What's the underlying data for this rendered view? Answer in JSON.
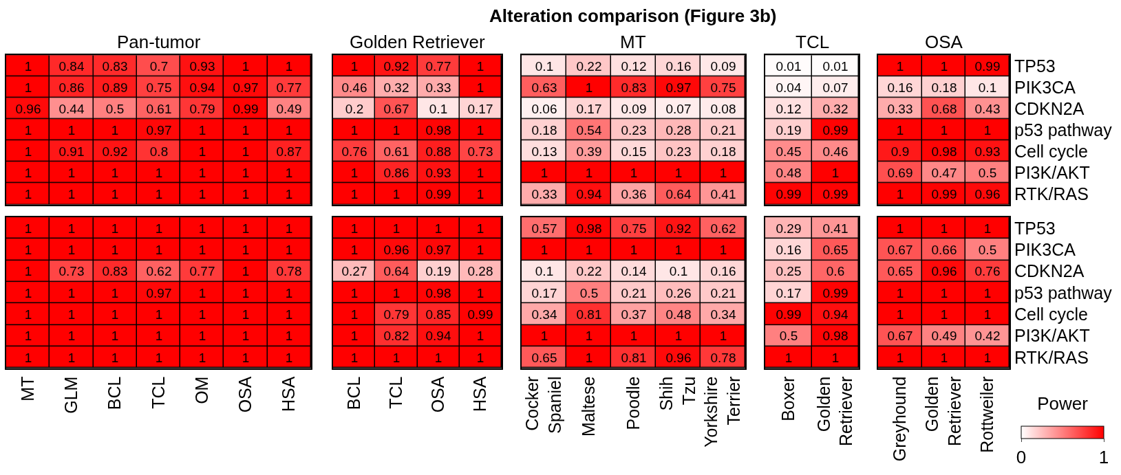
{
  "chart_data": [
    {
      "type": "heatmap",
      "title": "Pan-tumor",
      "categories": [
        null,
        null,
        null,
        null,
        null,
        null,
        null
      ],
      "y_categories": [
        null,
        null,
        null,
        null,
        null,
        null,
        null
      ],
      "data_labels": true,
      "cells": [
        [
          1,
          0.84,
          0.83,
          0.7,
          0.93,
          1,
          1
        ],
        [
          1,
          0.86,
          0.89,
          0.75,
          0.94,
          0.97,
          0.77
        ],
        [
          0.96,
          0.44,
          0.5,
          0.61,
          0.79,
          0.99,
          0.49
        ],
        [
          1,
          1,
          1,
          0.97,
          1,
          1,
          1
        ],
        [
          1,
          0.91,
          0.92,
          0.8,
          1,
          1,
          0.87
        ],
        [
          1,
          1,
          1,
          1,
          1,
          1,
          1
        ],
        [
          1,
          1,
          1,
          1,
          1,
          1,
          1
        ]
      ]
    },
    {
      "type": "heatmap",
      "title": "Golden Retriever",
      "categories": [
        null,
        null,
        null,
        null
      ],
      "y_categories": [
        null,
        null,
        null,
        null,
        null,
        null,
        null
      ],
      "data_labels": true,
      "cells": [
        [
          1,
          0.92,
          0.77,
          1
        ],
        [
          0.46,
          0.32,
          0.33,
          1
        ],
        [
          0.2,
          0.67,
          0.1,
          0.17
        ],
        [
          1,
          1,
          0.98,
          1
        ],
        [
          0.76,
          0.61,
          0.88,
          0.73
        ],
        [
          1,
          0.86,
          0.93,
          1
        ],
        [
          1,
          1,
          0.99,
          1
        ]
      ]
    },
    {
      "type": "heatmap",
      "title": "Alteration comparison (Figure 3b)",
      "subtitle": "MT",
      "categories": [
        null,
        null,
        null,
        null,
        null
      ],
      "y_categories": [
        null,
        null,
        null,
        null,
        null,
        null,
        null
      ],
      "data_labels": true,
      "cells": [
        [
          0.1,
          0.22,
          0.12,
          0.16,
          0.09
        ],
        [
          0.63,
          1,
          0.83,
          0.97,
          0.75
        ],
        [
          0.06,
          0.17,
          0.09,
          0.07,
          0.08
        ],
        [
          0.18,
          0.54,
          0.23,
          0.28,
          0.21
        ],
        [
          0.13,
          0.39,
          0.15,
          0.23,
          0.18
        ],
        [
          1,
          1,
          1,
          1,
          1
        ],
        [
          0.33,
          0.94,
          0.36,
          0.64,
          0.41
        ]
      ]
    },
    {
      "type": "heatmap",
      "title": "TCL",
      "categories": [
        null,
        null
      ],
      "y_categories": [
        null,
        null,
        null,
        null,
        null,
        null,
        null
      ],
      "data_labels": true,
      "cells": [
        [
          0.01,
          0.01
        ],
        [
          0.04,
          0.07
        ],
        [
          0.12,
          0.32
        ],
        [
          0.19,
          0.99
        ],
        [
          0.45,
          0.46
        ],
        [
          0.48,
          1
        ],
        [
          0.99,
          0.99
        ]
      ]
    },
    {
      "type": "heatmap",
      "title": "OSA",
      "categories": [
        null,
        null,
        null
      ],
      "y_categories": [
        "TP53",
        "PIK3CA",
        "CDKN2A",
        "p53 pathway",
        "Cell cycle",
        "PI3K/AKT",
        "RTK/RAS"
      ],
      "data_labels": true,
      "cells": [
        [
          1,
          1,
          0.99
        ],
        [
          0.16,
          0.18,
          0.1
        ],
        [
          0.33,
          0.68,
          0.43
        ],
        [
          1,
          1,
          1
        ],
        [
          0.9,
          0.98,
          0.93
        ],
        [
          0.69,
          0.47,
          0.5
        ],
        [
          1,
          0.99,
          0.96
        ]
      ]
    },
    {
      "type": "heatmap",
      "categories": [
        "MT",
        "GLM",
        "BCL",
        "TCL",
        "OM",
        "OSA",
        "HSA"
      ],
      "y_categories": [
        null,
        null,
        null,
        null,
        null,
        null,
        null
      ],
      "data_labels": true,
      "cells": [
        [
          1,
          1,
          1,
          1,
          1,
          1,
          1
        ],
        [
          1,
          1,
          1,
          1,
          1,
          1,
          1
        ],
        [
          1,
          0.73,
          0.83,
          0.62,
          0.77,
          1,
          0.78
        ],
        [
          1,
          1,
          1,
          0.97,
          1,
          1,
          1
        ],
        [
          1,
          1,
          1,
          1,
          1,
          1,
          1
        ],
        [
          1,
          1,
          1,
          1,
          1,
          1,
          1
        ],
        [
          1,
          1,
          1,
          1,
          1,
          1,
          1
        ]
      ]
    },
    {
      "type": "heatmap",
      "categories": [
        "BCL",
        "TCL",
        "OSA",
        "HSA"
      ],
      "y_categories": [
        null,
        null,
        null,
        null,
        null,
        null,
        null
      ],
      "data_labels": true,
      "cells": [
        [
          1,
          1,
          1,
          1
        ],
        [
          1,
          0.96,
          0.97,
          1
        ],
        [
          0.27,
          0.64,
          0.19,
          0.28
        ],
        [
          1,
          1,
          0.98,
          1
        ],
        [
          1,
          0.79,
          0.85,
          0.99
        ],
        [
          1,
          0.82,
          0.94,
          1
        ],
        [
          1,
          1,
          1,
          1
        ]
      ]
    },
    {
      "type": "heatmap",
      "categories": [
        "Cocker Spaniel",
        "Maltese",
        "Poodle",
        "Shih Tzu",
        "Yorkshire Terrier"
      ],
      "y_categories": [
        null,
        null,
        null,
        null,
        null,
        null,
        null
      ],
      "data_labels": true,
      "cells": [
        [
          0.57,
          0.98,
          0.75,
          0.92,
          0.62
        ],
        [
          1,
          1,
          1,
          1,
          1
        ],
        [
          0.1,
          0.22,
          0.14,
          0.1,
          0.16
        ],
        [
          0.17,
          0.5,
          0.21,
          0.26,
          0.21
        ],
        [
          0.34,
          0.81,
          0.37,
          0.48,
          0.34
        ],
        [
          1,
          1,
          1,
          1,
          1
        ],
        [
          0.65,
          1,
          0.81,
          0.96,
          0.78
        ]
      ]
    },
    {
      "type": "heatmap",
      "categories": [
        "Boxer",
        "Golden Retriever"
      ],
      "y_categories": [
        null,
        null,
        null,
        null,
        null,
        null,
        null
      ],
      "data_labels": true,
      "cells": [
        [
          0.29,
          0.41
        ],
        [
          0.16,
          0.65
        ],
        [
          0.25,
          0.6
        ],
        [
          0.17,
          0.99
        ],
        [
          0.99,
          0.94
        ],
        [
          0.5,
          0.98
        ],
        [
          1,
          1
        ]
      ]
    },
    {
      "type": "heatmap",
      "categories": [
        "Greyhound",
        "Golden Retriever",
        "Rottweiler"
      ],
      "y_categories": [
        "TP53",
        "PIK3CA",
        "CDKN2A",
        "p53 pathway",
        "Cell cycle",
        "PI3K/AKT",
        "RTK/RAS"
      ],
      "data_labels": true,
      "clabel": "Power",
      "clim": [
        0,
        1
      ],
      "cticks": [
        0,
        1
      ],
      "cells": [
        [
          1,
          1,
          1
        ],
        [
          0.67,
          0.66,
          0.5
        ],
        [
          0.65,
          0.96,
          0.76
        ],
        [
          1,
          1,
          1
        ],
        [
          1,
          1,
          1
        ],
        [
          0.67,
          0.49,
          0.42
        ],
        [
          1,
          1,
          1
        ]
      ]
    }
  ]
}
